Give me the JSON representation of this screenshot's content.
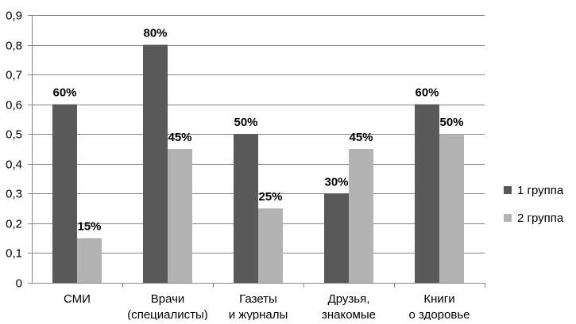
{
  "chart_data": {
    "type": "bar",
    "categories": [
      [
        "СМИ"
      ],
      [
        "Врачи",
        "(специалисты)"
      ],
      [
        "Газеты",
        "и журналы"
      ],
      [
        "Друзья,",
        "знакомые"
      ],
      [
        "Книги",
        "о здоровье"
      ]
    ],
    "series": [
      {
        "name": "1 группа",
        "color": "#595959",
        "values": [
          0.6,
          0.8,
          0.5,
          0.3,
          0.6
        ],
        "labels": [
          "60%",
          "80%",
          "50%",
          "30%",
          "60%"
        ]
      },
      {
        "name": "2 группа",
        "color": "#b3b3b3",
        "values": [
          0.15,
          0.45,
          0.25,
          0.45,
          0.5
        ],
        "labels": [
          "15%",
          "45%",
          "25%",
          "45%",
          "50%"
        ]
      }
    ],
    "ylim": [
      0,
      0.9
    ],
    "yticks": [
      "0",
      "0,1",
      "0,2",
      "0,3",
      "0,4",
      "0,5",
      "0,6",
      "0,7",
      "0,8",
      "0,9"
    ],
    "grid": true,
    "legend_position": "right"
  }
}
